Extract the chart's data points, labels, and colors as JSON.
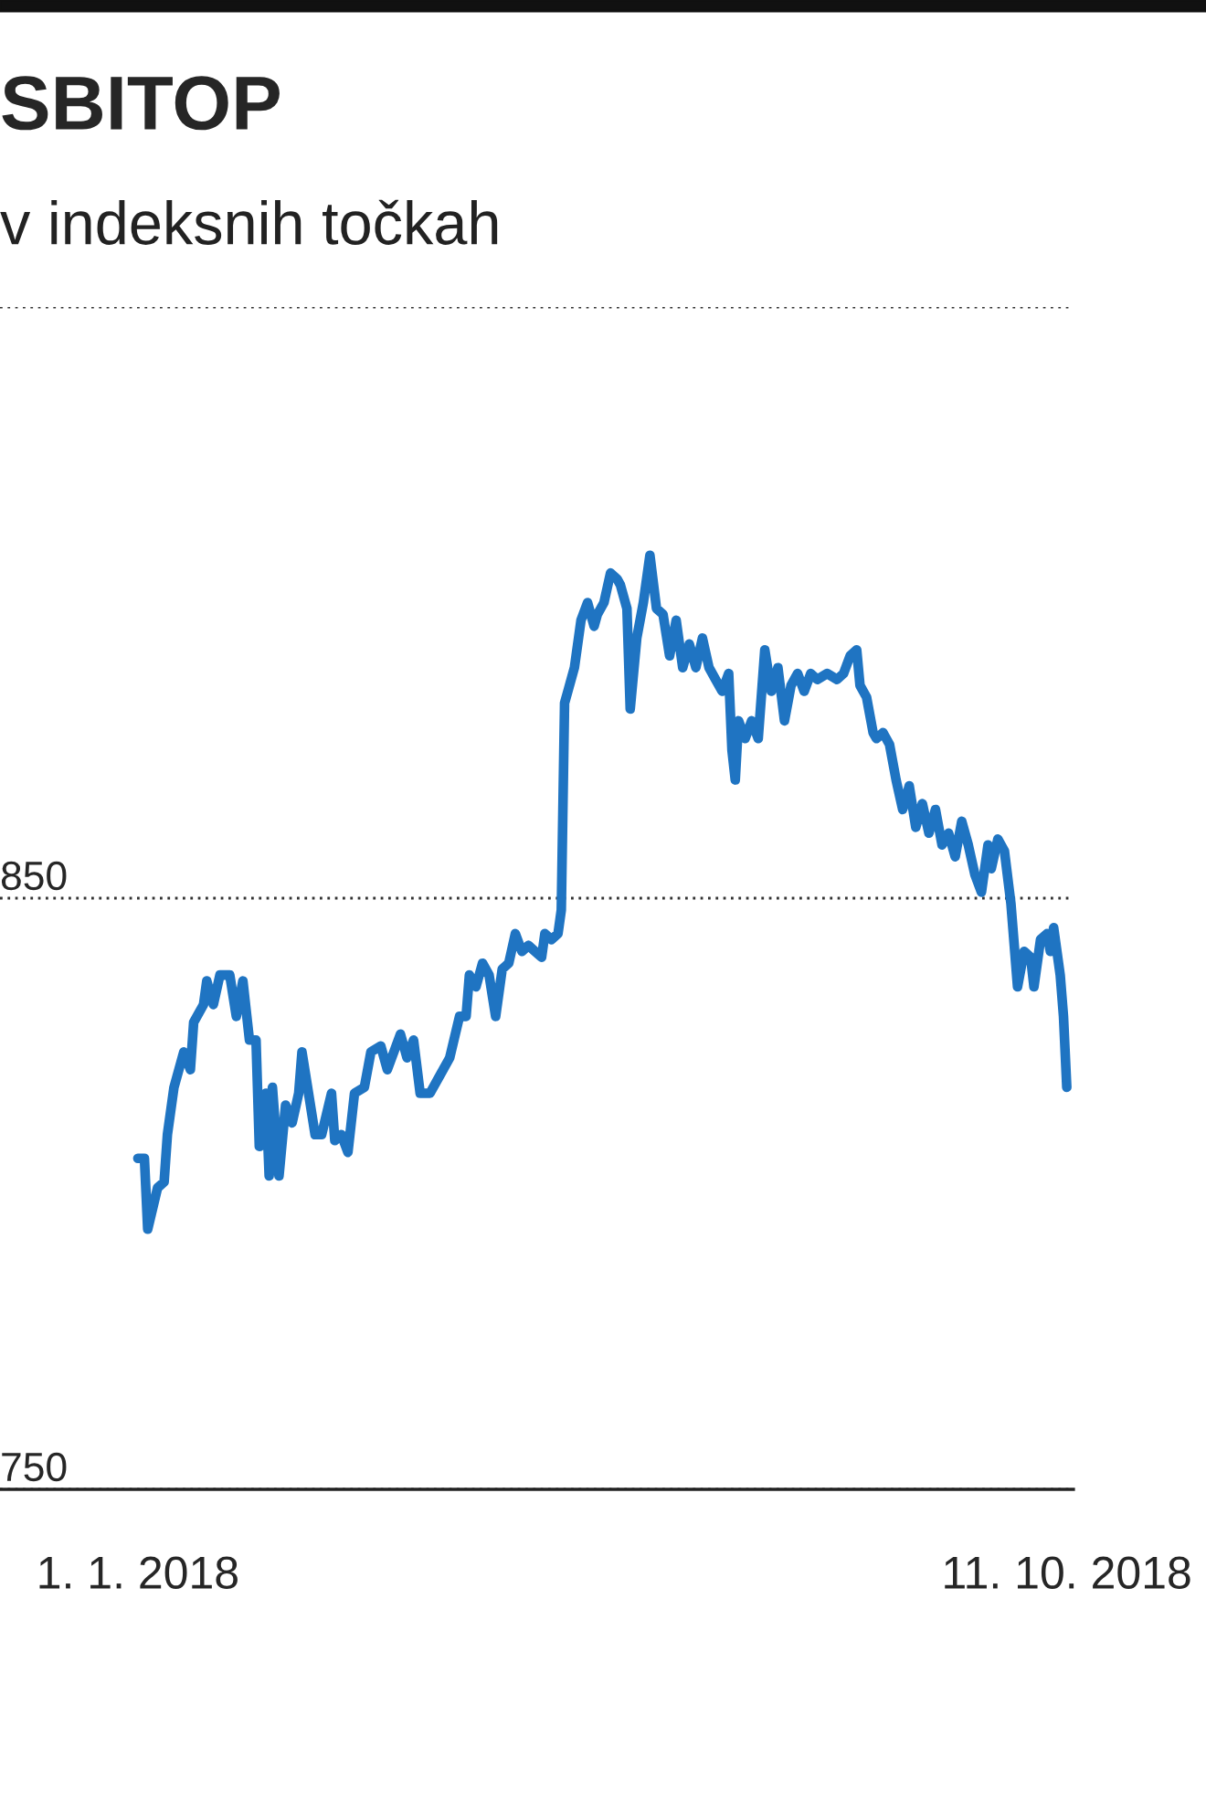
{
  "chart_data": {
    "type": "line",
    "title": "SBITOP",
    "subtitle": "v indeksnih točkah",
    "x": [
      "2018-01-01",
      "2018-01-03",
      "2018-01-04",
      "2018-01-07",
      "2018-01-09",
      "2018-01-10",
      "2018-01-12",
      "2018-01-13",
      "2018-01-15",
      "2018-01-17",
      "2018-01-18",
      "2018-01-21",
      "2018-01-22",
      "2018-01-24",
      "2018-01-26",
      "2018-01-29",
      "2018-01-31",
      "2018-02-02",
      "2018-02-04",
      "2018-02-06",
      "2018-02-07",
      "2018-02-09",
      "2018-02-10",
      "2018-02-11",
      "2018-02-13",
      "2018-02-15",
      "2018-02-17",
      "2018-02-19",
      "2018-02-20",
      "2018-02-22",
      "2018-02-24",
      "2018-02-26",
      "2018-03-01",
      "2018-03-02",
      "2018-03-04",
      "2018-03-06",
      "2018-03-08",
      "2018-03-11",
      "2018-03-13",
      "2018-03-16",
      "2018-03-18",
      "2018-03-20",
      "2018-03-22",
      "2018-03-24",
      "2018-03-26",
      "2018-03-28",
      "2018-03-31",
      "2018-04-03",
      "2018-04-06",
      "2018-04-09",
      "2018-04-11",
      "2018-04-12",
      "2018-04-14",
      "2018-04-16",
      "2018-04-18",
      "2018-04-20",
      "2018-04-22",
      "2018-04-24",
      "2018-04-26",
      "2018-04-28",
      "2018-04-30",
      "2018-05-02",
      "2018-05-04",
      "2018-05-05",
      "2018-05-07",
      "2018-05-09",
      "2018-05-10",
      "2018-05-11",
      "2018-05-12",
      "2018-05-14",
      "2018-05-16",
      "2018-05-18",
      "2018-05-20",
      "2018-05-21",
      "2018-05-23",
      "2018-05-25",
      "2018-05-27",
      "2018-05-28",
      "2018-05-30",
      "2018-05-31",
      "2018-06-02",
      "2018-06-04",
      "2018-06-06",
      "2018-06-08",
      "2018-06-10",
      "2018-06-12",
      "2018-06-14",
      "2018-06-16",
      "2018-06-18",
      "2018-06-20",
      "2018-06-22",
      "2018-06-24",
      "2018-06-26",
      "2018-06-28",
      "2018-06-30",
      "2018-07-01",
      "2018-07-02",
      "2018-07-03",
      "2018-07-05",
      "2018-07-07",
      "2018-07-09",
      "2018-07-11",
      "2018-07-13",
      "2018-07-15",
      "2018-07-17",
      "2018-07-19",
      "2018-07-21",
      "2018-07-23",
      "2018-07-25",
      "2018-07-27",
      "2018-07-30",
      "2018-08-02",
      "2018-08-04",
      "2018-08-06",
      "2018-08-08",
      "2018-08-09",
      "2018-08-11",
      "2018-08-13",
      "2018-08-14",
      "2018-08-16",
      "2018-08-18",
      "2018-08-20",
      "2018-08-22",
      "2018-08-24",
      "2018-08-26",
      "2018-08-28",
      "2018-08-30",
      "2018-09-01",
      "2018-09-03",
      "2018-09-05",
      "2018-09-07",
      "2018-09-09",
      "2018-09-11",
      "2018-09-13",
      "2018-09-15",
      "2018-09-17",
      "2018-09-18",
      "2018-09-20",
      "2018-09-22",
      "2018-09-24",
      "2018-09-26",
      "2018-09-28",
      "2018-09-30",
      "2018-10-01",
      "2018-10-03",
      "2018-10-05",
      "2018-10-06",
      "2018-10-07",
      "2018-10-09",
      "2018-10-10",
      "2018-10-11"
    ],
    "series": [
      {
        "color": "#1f74c2",
        "values": [
          806,
          806,
          794,
          801,
          802,
          810,
          818,
          820,
          824,
          821,
          829,
          832,
          836,
          832,
          837,
          837,
          830,
          836,
          826,
          826,
          808,
          817,
          803,
          818,
          803,
          815,
          812,
          817,
          824,
          817,
          810,
          810,
          817,
          809,
          810,
          807,
          817,
          818,
          824,
          825,
          821,
          824,
          827,
          823,
          826,
          817,
          817,
          820,
          823,
          830,
          830,
          837,
          835,
          839,
          837,
          830,
          838,
          839,
          844,
          841,
          842,
          841,
          840,
          844,
          843,
          844,
          848,
          883,
          885,
          889,
          897,
          900,
          896,
          898,
          900,
          905,
          904,
          903,
          899,
          882,
          894,
          900,
          908,
          899,
          898,
          891,
          897,
          889,
          893,
          889,
          894,
          889,
          887,
          885,
          888,
          875,
          870,
          880,
          877,
          880,
          877,
          892,
          885,
          889,
          880,
          886,
          888,
          885,
          888,
          887,
          888,
          887,
          888,
          891,
          892,
          886,
          884,
          878,
          877,
          878,
          876,
          870,
          865,
          869,
          862,
          866,
          861,
          865,
          859,
          861,
          857,
          863,
          859,
          854,
          851,
          859,
          855,
          860,
          858,
          849,
          835,
          841,
          840,
          835,
          843,
          844,
          841,
          845,
          837,
          830,
          818
        ]
      }
    ],
    "xlim": [
      "2017-11-20",
      "2018-10-13"
    ],
    "xticks": [
      {
        "value": "2018-01-01",
        "label": "1. 1. 2018"
      },
      {
        "value": "2018-10-11",
        "label": "11. 10. 2018"
      }
    ],
    "ylim": [
      750,
      950
    ],
    "yticks": [
      750,
      850,
      {
        "value": 950,
        "label": null
      }
    ],
    "grid": "y",
    "line_style": "solid",
    "legend": false
  }
}
